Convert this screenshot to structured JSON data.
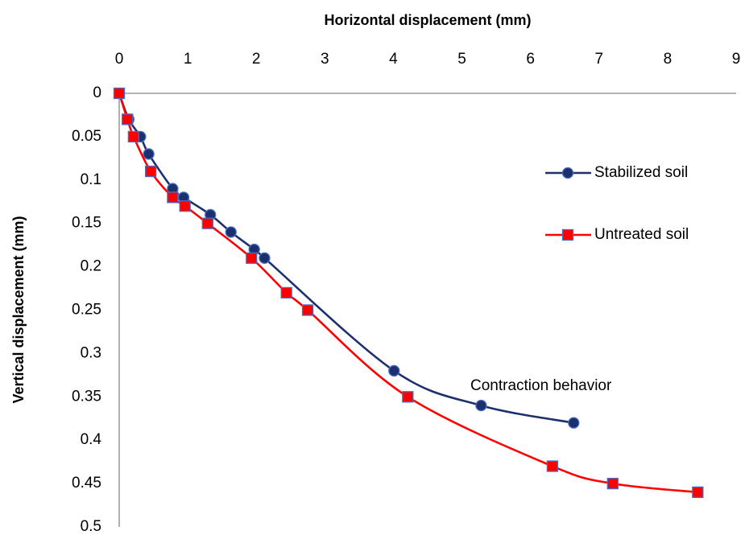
{
  "chart_data": {
    "type": "line",
    "x_label": "Horizontal displacement (mm)",
    "y_label": "Vertical displacement (mm)",
    "annotation": "Contraction behavior",
    "xlim": [
      0,
      9
    ],
    "xticks": [
      0,
      1,
      2,
      3,
      4,
      5,
      6,
      7,
      8,
      9
    ],
    "ylim": [
      0,
      0.5
    ],
    "yticks": [
      0,
      0.05,
      0.1,
      0.15,
      0.2,
      0.25,
      0.3,
      0.35,
      0.4,
      0.45,
      0.5
    ],
    "y_inverted": true,
    "x_axis_position": "top",
    "smooth": true,
    "grid": false,
    "legend": "right",
    "series": [
      {
        "name": "Stabilized soil",
        "color": "#1c2f6e",
        "marker": "circle",
        "x": [
          0,
          0.14,
          0.31,
          0.43,
          0.78,
          0.94,
          1.33,
          1.63,
          1.97,
          2.12,
          4.01,
          5.28,
          6.63
        ],
        "values": [
          0,
          0.03,
          0.05,
          0.07,
          0.11,
          0.12,
          0.14,
          0.16,
          0.18,
          0.19,
          0.32,
          0.36,
          0.38
        ]
      },
      {
        "name": "Untreated soil",
        "color": "#ff0000",
        "marker": "square",
        "x": [
          0,
          0.12,
          0.21,
          0.46,
          0.78,
          0.96,
          1.29,
          1.93,
          2.44,
          2.75,
          4.21,
          6.32,
          7.2,
          8.44
        ],
        "values": [
          0,
          0.03,
          0.05,
          0.09,
          0.12,
          0.13,
          0.15,
          0.19,
          0.23,
          0.25,
          0.35,
          0.43,
          0.45,
          0.46
        ]
      }
    ]
  }
}
